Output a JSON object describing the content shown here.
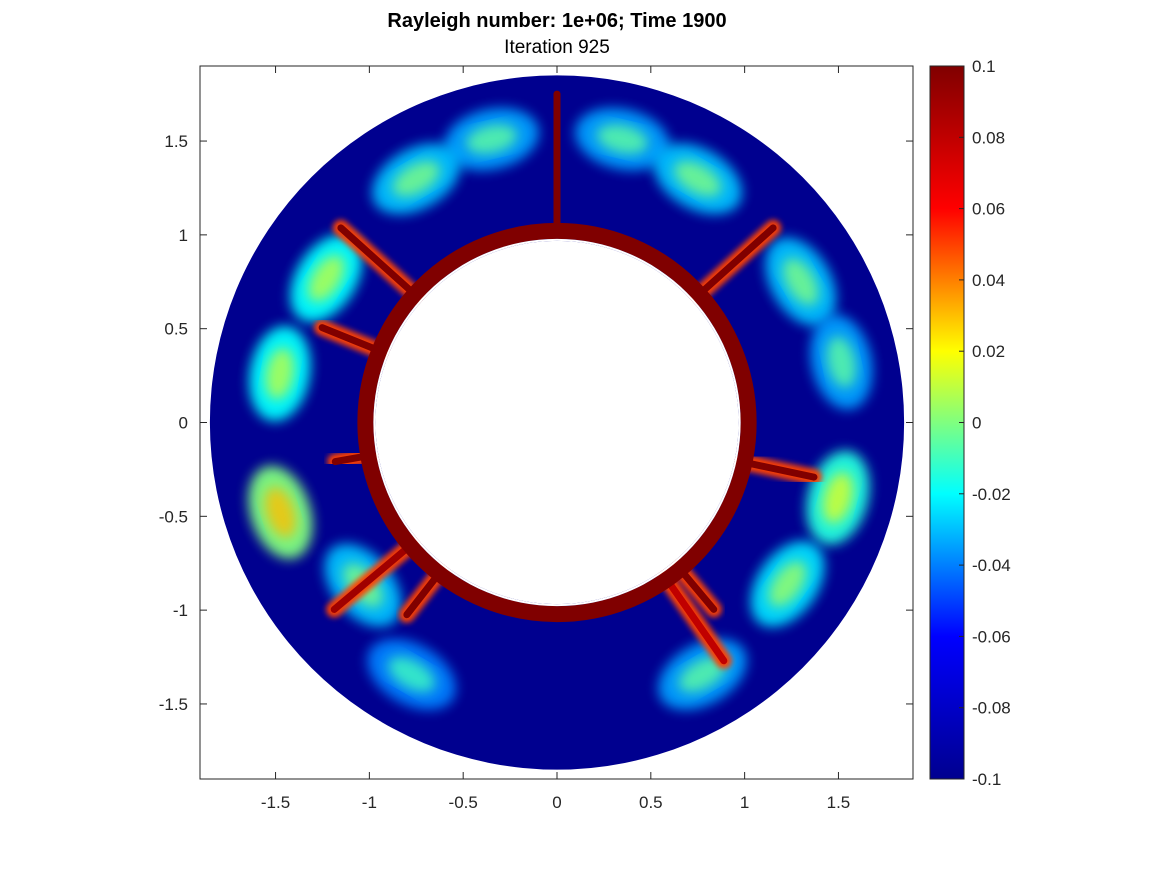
{
  "chart_data": {
    "type": "heatmap",
    "title": "Rayleigh number: 1e+06; Time 1900",
    "subtitle": "Iteration 925",
    "xlabel": "",
    "ylabel": "",
    "xlim": [
      -1.9,
      1.9
    ],
    "ylim": [
      -1.9,
      1.9
    ],
    "xticks": [
      -1.5,
      -1,
      -0.5,
      0,
      0.5,
      1,
      1.5
    ],
    "xtick_labels": [
      "-1.5",
      "-1",
      "-0.5",
      "0",
      "0.5",
      "1",
      "1.5"
    ],
    "yticks": [
      1.5,
      1,
      0.5,
      0,
      -0.5,
      -1,
      -1.5
    ],
    "ytick_labels": [
      "1.5",
      "1",
      "0.5",
      "0",
      "-0.5",
      "-1",
      "-1.5"
    ],
    "domain": {
      "shape": "annulus",
      "inner_radius": 1.0,
      "outer_radius": 1.85
    },
    "colormap": "jet",
    "clim": [
      -0.1,
      0.1
    ],
    "colorbar_ticks": [
      0.1,
      0.08,
      0.06,
      0.04,
      0.02,
      0,
      -0.02,
      -0.04,
      -0.06,
      -0.08,
      -0.1
    ],
    "colorbar_tick_labels": [
      "0.1",
      "0.08",
      "0.06",
      "0.04",
      "0.02",
      "0",
      "-0.02",
      "-0.04",
      "-0.06",
      "-0.08",
      "-0.1"
    ],
    "colorbar_stops": [
      "#00008f",
      "#0000ff",
      "#00ffff",
      "#ffff00",
      "#ff0000",
      "#800000"
    ],
    "background_value": -0.1,
    "inner_boundary_value": 0.1,
    "plumes": [
      {
        "angle": 90,
        "length": 0.75,
        "value": 0.1
      },
      {
        "angle": 42,
        "length": 0.55,
        "value": 0.1
      },
      {
        "angle": 138,
        "length": 0.55,
        "value": 0.1
      },
      {
        "angle": 158,
        "length": 0.35,
        "value": 0.1
      },
      {
        "angle": 190,
        "length": 0.2,
        "value": 0.1
      },
      {
        "angle": -12,
        "length": 0.4,
        "value": 0.1
      },
      {
        "angle": -50,
        "length": 0.3,
        "value": 0.1
      },
      {
        "angle": -128,
        "length": 0.3,
        "value": 0.1
      },
      {
        "angle": -140,
        "length": 0.55,
        "value": 0.09
      },
      {
        "angle": -55,
        "length": 0.55,
        "value": 0.08
      }
    ],
    "cells": [
      {
        "angle": 103,
        "radius": 1.55,
        "value": -0.035
      },
      {
        "angle": 77,
        "radius": 1.55,
        "value": -0.035
      },
      {
        "angle": 60,
        "radius": 1.5,
        "value": -0.03
      },
      {
        "angle": 120,
        "radius": 1.5,
        "value": -0.03
      },
      {
        "angle": 148,
        "radius": 1.45,
        "value": -0.02
      },
      {
        "angle": 30,
        "radius": 1.5,
        "value": -0.03
      },
      {
        "angle": 12,
        "radius": 1.55,
        "value": -0.035
      },
      {
        "angle": 170,
        "radius": 1.5,
        "value": -0.02
      },
      {
        "angle": 198,
        "radius": 1.55,
        "value": 0.0
      },
      {
        "angle": -15,
        "radius": 1.55,
        "value": -0.015
      },
      {
        "angle": -35,
        "radius": 1.5,
        "value": -0.025
      },
      {
        "angle": -60,
        "radius": 1.55,
        "value": -0.035
      },
      {
        "angle": -120,
        "radius": 1.55,
        "value": -0.04
      },
      {
        "angle": -140,
        "radius": 1.35,
        "value": -0.03
      }
    ]
  }
}
